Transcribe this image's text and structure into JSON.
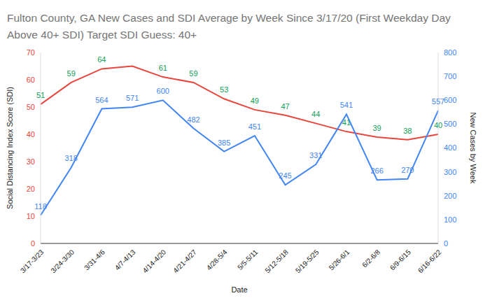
{
  "chart_data": {
    "type": "line",
    "title": "Fulton County, GA New Cases and SDI Average by Week Since 3/17/20 (First Weekday Day Above 40+ SDI) Target SDI Guess: 40+",
    "x_label": "Date",
    "y_label": "Social Distancing Index Score (SDI)",
    "y2_label": "New Cases by Week",
    "categories": [
      "3/17-3/23",
      "3/24-3/30",
      "3/31-4/6",
      "4/7-4/13",
      "4/14-4/20",
      "4/21-4/27",
      "4/28-5/4",
      "5/5-5/11",
      "5/12-5/18",
      "5/19-5/25",
      "5/26-6/1",
      "6/2-6/8",
      "6/9-6/15",
      "6/16-6/22"
    ],
    "series": [
      {
        "color": "#e8453c",
        "values": [
          51,
          59,
          64,
          65,
          61,
          59,
          53,
          49,
          47,
          44,
          41,
          39,
          38,
          40
        ],
        "value_labels": [
          "51",
          "59",
          "64",
          null,
          "61",
          "59",
          "53",
          "49",
          "47",
          "44",
          "41",
          "39",
          "38",
          "40"
        ]
      },
      {
        "color": "#4285f4",
        "axis": "y2",
        "values": [
          118,
          318,
          564,
          571,
          600,
          482,
          385,
          451,
          245,
          331,
          541,
          266,
          270,
          557
        ]
      }
    ],
    "ylim": [
      0,
      70
    ],
    "yticks": [
      0,
      10,
      20,
      30,
      40,
      50,
      60,
      70
    ],
    "y2lim": [
      0,
      800
    ],
    "y2ticks": [
      0,
      100,
      200,
      300,
      400,
      500,
      600,
      700,
      800
    ],
    "grid": false,
    "data_labels": true
  }
}
